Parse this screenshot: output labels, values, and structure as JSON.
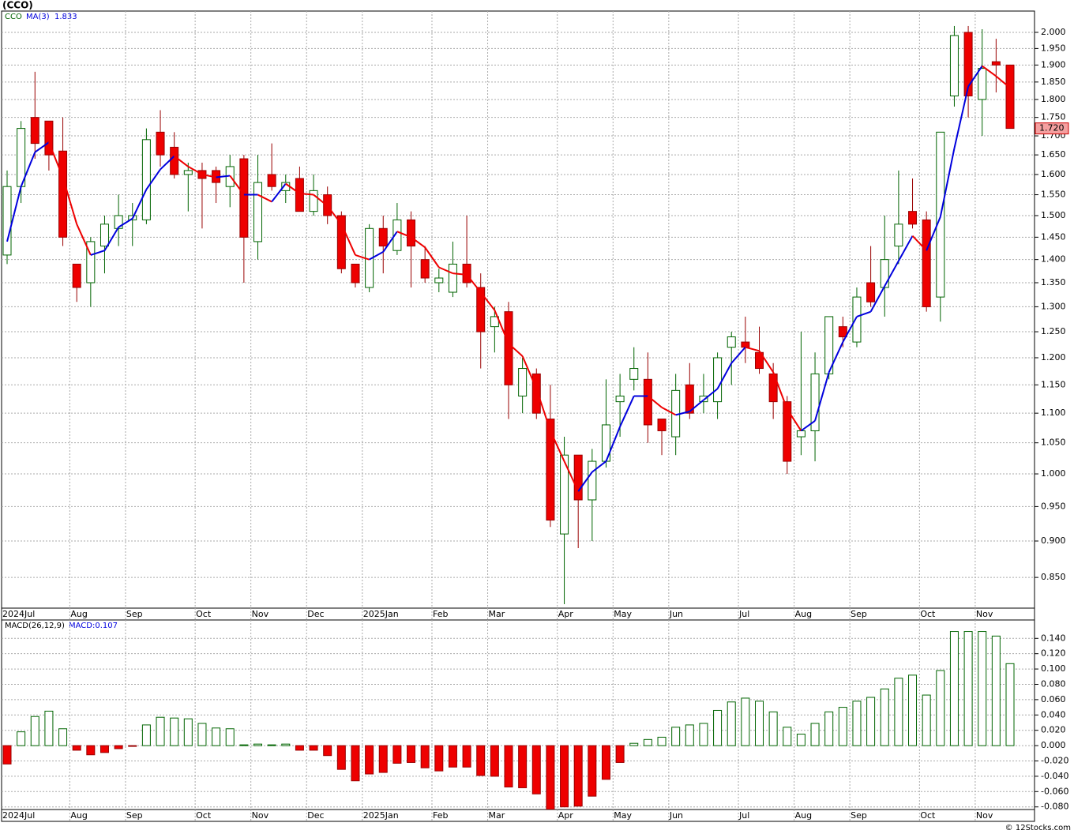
{
  "chart_data": [
    {
      "type": "candlestick",
      "title": "(CCO)",
      "ticker": "CCO",
      "log_scale": true,
      "grid": true,
      "up_color": "#006400",
      "down_color": "#ee0000",
      "categories": [
        "2024Jul",
        null,
        null,
        null,
        null,
        "Aug",
        null,
        null,
        null,
        "Sep",
        null,
        null,
        null,
        null,
        "Oct",
        null,
        null,
        null,
        "Nov",
        null,
        null,
        null,
        "Dec",
        null,
        null,
        null,
        "2025Jan",
        null,
        null,
        null,
        null,
        "Feb",
        null,
        null,
        null,
        "Mar",
        null,
        null,
        null,
        null,
        "Apr",
        null,
        null,
        null,
        "May",
        null,
        null,
        null,
        "Jun",
        null,
        null,
        null,
        null,
        "Jul",
        null,
        null,
        null,
        "Aug",
        null,
        null,
        null,
        "Sep",
        null,
        null,
        null,
        null,
        "Oct",
        null,
        null,
        null,
        "Nov",
        null,
        null
      ],
      "open": [
        1.41,
        1.57,
        1.75,
        1.74,
        1.66,
        1.39,
        1.35,
        1.43,
        1.47,
        1.49,
        1.49,
        1.71,
        1.67,
        1.6,
        1.61,
        1.61,
        1.57,
        1.64,
        1.44,
        1.6,
        1.56,
        1.59,
        1.51,
        1.55,
        1.5,
        1.39,
        1.34,
        1.47,
        1.42,
        1.49,
        1.4,
        1.35,
        1.33,
        1.39,
        1.34,
        1.26,
        1.29,
        1.13,
        1.17,
        1.09,
        0.91,
        1.03,
        0.96,
        1.02,
        1.12,
        1.16,
        1.16,
        1.09,
        1.06,
        1.15,
        1.12,
        1.12,
        1.22,
        1.23,
        1.21,
        1.17,
        1.12,
        1.06,
        1.07,
        1.17,
        1.26,
        1.23,
        1.35,
        1.34,
        1.43,
        1.51,
        1.49,
        1.32,
        1.81,
        2.0,
        1.8,
        1.91,
        1.9
      ],
      "high": [
        1.61,
        1.74,
        1.88,
        1.74,
        1.75,
        1.39,
        1.45,
        1.5,
        1.55,
        1.53,
        1.72,
        1.77,
        1.71,
        1.63,
        1.63,
        1.62,
        1.65,
        1.65,
        1.65,
        1.68,
        1.6,
        1.62,
        1.6,
        1.57,
        1.51,
        1.39,
        1.48,
        1.5,
        1.53,
        1.51,
        1.43,
        1.38,
        1.44,
        1.5,
        1.37,
        1.3,
        1.31,
        1.2,
        1.18,
        1.15,
        1.06,
        1.03,
        1.04,
        1.16,
        1.17,
        1.22,
        1.21,
        1.09,
        1.17,
        1.19,
        1.17,
        1.21,
        1.25,
        1.28,
        1.26,
        1.19,
        1.13,
        1.25,
        1.21,
        1.28,
        1.28,
        1.34,
        1.43,
        1.5,
        1.61,
        1.59,
        1.51,
        1.71,
        2.02,
        2.02,
        2.01,
        1.98,
        1.9
      ],
      "low": [
        1.39,
        1.53,
        1.64,
        1.61,
        1.43,
        1.31,
        1.3,
        1.37,
        1.43,
        1.43,
        1.48,
        1.62,
        1.59,
        1.51,
        1.47,
        1.53,
        1.52,
        1.35,
        1.4,
        1.56,
        1.53,
        1.51,
        1.5,
        1.48,
        1.37,
        1.34,
        1.33,
        1.37,
        1.41,
        1.34,
        1.35,
        1.33,
        1.32,
        1.34,
        1.18,
        1.21,
        1.09,
        1.1,
        1.09,
        0.92,
        0.815,
        0.89,
        0.9,
        1.01,
        1.06,
        1.14,
        1.05,
        1.03,
        1.03,
        1.09,
        1.1,
        1.09,
        1.15,
        1.19,
        1.17,
        1.09,
        1.0,
        1.03,
        1.02,
        1.16,
        1.22,
        1.22,
        1.3,
        1.28,
        1.39,
        1.47,
        1.29,
        1.27,
        1.78,
        1.75,
        1.7,
        1.82,
        1.72
      ],
      "close": [
        1.57,
        1.72,
        1.68,
        1.65,
        1.45,
        1.34,
        1.44,
        1.48,
        1.5,
        1.5,
        1.69,
        1.65,
        1.6,
        1.61,
        1.59,
        1.58,
        1.62,
        1.45,
        1.58,
        1.57,
        1.58,
        1.51,
        1.56,
        1.5,
        1.38,
        1.35,
        1.47,
        1.43,
        1.49,
        1.43,
        1.36,
        1.36,
        1.39,
        1.35,
        1.25,
        1.28,
        1.15,
        1.18,
        1.1,
        0.93,
        1.03,
        0.96,
        1.02,
        1.08,
        1.13,
        1.18,
        1.08,
        1.07,
        1.14,
        1.1,
        1.13,
        1.2,
        1.24,
        1.22,
        1.18,
        1.12,
        1.02,
        1.07,
        1.17,
        1.28,
        1.24,
        1.32,
        1.31,
        1.4,
        1.48,
        1.48,
        1.3,
        1.71,
        1.99,
        1.81,
        1.89,
        1.9,
        1.72
      ],
      "ma": {
        "name": "MA(3)",
        "rise_color": "#0000dd",
        "fall_color": "#ee0000",
        "values": [
          1.44,
          1.57,
          1.657,
          1.683,
          1.593,
          1.48,
          1.41,
          1.42,
          1.473,
          1.493,
          1.563,
          1.613,
          1.647,
          1.62,
          1.6,
          1.593,
          1.597,
          1.55,
          1.55,
          1.533,
          1.577,
          1.553,
          1.55,
          1.523,
          1.48,
          1.41,
          1.4,
          1.417,
          1.463,
          1.45,
          1.427,
          1.383,
          1.37,
          1.367,
          1.33,
          1.293,
          1.227,
          1.203,
          1.143,
          1.07,
          1.02,
          0.973,
          1.003,
          1.02,
          1.077,
          1.13,
          1.13,
          1.11,
          1.097,
          1.103,
          1.123,
          1.143,
          1.19,
          1.22,
          1.213,
          1.173,
          1.107,
          1.07,
          1.087,
          1.173,
          1.23,
          1.28,
          1.29,
          1.343,
          1.397,
          1.453,
          1.42,
          1.497,
          1.667,
          1.837,
          1.897,
          1.867,
          1.833
        ]
      },
      "last_price": {
        "value": 1.72,
        "label": "1.720"
      },
      "ylim": [
        0.81,
        2.068
      ],
      "yticks": [
        {
          "value": 0.85,
          "label": "0.850"
        },
        {
          "value": 0.9,
          "label": "0.900"
        },
        {
          "value": 0.95,
          "label": "0.950"
        },
        {
          "value": 1.0,
          "label": "1.000"
        },
        {
          "value": 1.05,
          "label": "1.050"
        },
        {
          "value": 1.1,
          "label": "1.100"
        },
        {
          "value": 1.15,
          "label": "1.150"
        },
        {
          "value": 1.2,
          "label": "1.200"
        },
        {
          "value": 1.25,
          "label": "1.250"
        },
        {
          "value": 1.3,
          "label": "1.300"
        },
        {
          "value": 1.35,
          "label": "1.350"
        },
        {
          "value": 1.4,
          "label": "1.400"
        },
        {
          "value": 1.45,
          "label": "1.450"
        },
        {
          "value": 1.5,
          "label": "1.500"
        },
        {
          "value": 1.55,
          "label": "1.550"
        },
        {
          "value": 1.6,
          "label": "1.600"
        },
        {
          "value": 1.65,
          "label": "1.650"
        },
        {
          "value": 1.7,
          "label": "1.700"
        },
        {
          "value": 1.75,
          "label": "1.750"
        },
        {
          "value": 1.8,
          "label": "1.800"
        },
        {
          "value": 1.85,
          "label": "1.850"
        },
        {
          "value": 1.9,
          "label": "1.900"
        },
        {
          "value": 1.95,
          "label": "1.950"
        },
        {
          "value": 2.0,
          "label": "2.000"
        }
      ]
    },
    {
      "type": "bar",
      "name": "MACD(26,12,9)",
      "label": "MACD:0.107",
      "grid": true,
      "up_color": "#006400",
      "down_color": "#ee0000",
      "categories": [
        "2024Jul",
        null,
        null,
        null,
        null,
        "Aug",
        null,
        null,
        null,
        "Sep",
        null,
        null,
        null,
        null,
        "Oct",
        null,
        null,
        null,
        "Nov",
        null,
        null,
        null,
        "Dec",
        null,
        null,
        null,
        "2025Jan",
        null,
        null,
        null,
        null,
        "Feb",
        null,
        null,
        null,
        "Mar",
        null,
        null,
        null,
        null,
        "Apr",
        null,
        null,
        null,
        "May",
        null,
        null,
        null,
        "Jun",
        null,
        null,
        null,
        null,
        "Jul",
        null,
        null,
        null,
        "Aug",
        null,
        null,
        null,
        "Sep",
        null,
        null,
        null,
        null,
        "Oct",
        null,
        null,
        null,
        "Nov",
        null,
        null
      ],
      "values": [
        -0.024,
        0.018,
        0.038,
        0.045,
        0.022,
        -0.006,
        -0.012,
        -0.009,
        -0.004,
        -0.001,
        0.027,
        0.037,
        0.036,
        0.035,
        0.029,
        0.023,
        0.022,
        0.001,
        0.002,
        0.001,
        0.002,
        -0.006,
        -0.006,
        -0.013,
        -0.031,
        -0.046,
        -0.037,
        -0.035,
        -0.023,
        -0.022,
        -0.029,
        -0.033,
        -0.028,
        -0.028,
        -0.039,
        -0.04,
        -0.054,
        -0.055,
        -0.063,
        -0.083,
        -0.08,
        -0.079,
        -0.066,
        -0.044,
        -0.022,
        0.003,
        0.008,
        0.011,
        0.024,
        0.027,
        0.029,
        0.046,
        0.057,
        0.062,
        0.058,
        0.044,
        0.024,
        0.015,
        0.029,
        0.044,
        0.05,
        0.058,
        0.063,
        0.074,
        0.088,
        0.092,
        0.066,
        0.098,
        0.149,
        0.149,
        0.149,
        0.143,
        0.107
      ],
      "ylim": [
        -0.0834,
        0.164
      ],
      "yticks": [
        {
          "value": -0.08,
          "label": "-0.080"
        },
        {
          "value": -0.06,
          "label": "-0.060"
        },
        {
          "value": -0.04,
          "label": "-0.040"
        },
        {
          "value": -0.02,
          "label": "-0.020"
        },
        {
          "value": 0,
          "label": "0.000"
        },
        {
          "value": 0.02,
          "label": "0.020"
        },
        {
          "value": 0.04,
          "label": "0.040"
        },
        {
          "value": 0.06,
          "label": "0.060"
        },
        {
          "value": 0.08,
          "label": "0.080"
        },
        {
          "value": 0.1,
          "label": "0.100"
        },
        {
          "value": 0.12,
          "label": "0.120"
        },
        {
          "value": 0.14,
          "label": "0.140"
        }
      ]
    }
  ],
  "credit": "© 12Stocks.com"
}
